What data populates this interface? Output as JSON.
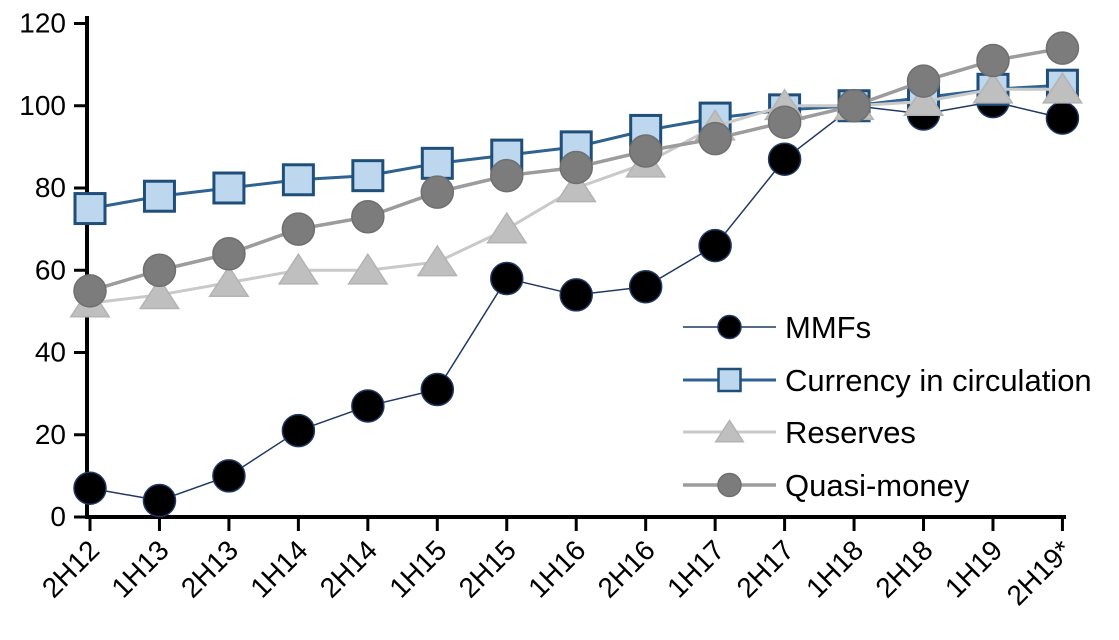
{
  "chart_data": {
    "type": "line",
    "title": "",
    "xlabel": "",
    "ylabel": "",
    "categories": [
      "2H12",
      "1H13",
      "2H13",
      "1H14",
      "2H14",
      "1H15",
      "2H15",
      "1H16",
      "2H16",
      "1H17",
      "2H17",
      "1H18",
      "2H18",
      "1H19",
      "2H19*"
    ],
    "series": [
      {
        "name": "MMFs",
        "marker": "circle",
        "values": [
          7,
          4,
          10,
          21,
          27,
          31,
          58,
          54,
          56,
          66,
          87,
          100,
          98,
          101,
          97
        ],
        "line_color": "#1F3864",
        "line_width": 1.5,
        "marker_fill": "#000000",
        "marker_stroke": "#1F3864"
      },
      {
        "name": "Currency in circulation",
        "marker": "square",
        "values": [
          75,
          78,
          80,
          82,
          83,
          86,
          88,
          90,
          94,
          97,
          99,
          100,
          102,
          104,
          105
        ],
        "line_color": "#2E6391",
        "line_width": 3,
        "marker_fill": "#BDD7EE",
        "marker_stroke": "#1F4E79"
      },
      {
        "name": "Reserves",
        "marker": "triangle",
        "values": [
          52,
          54,
          57,
          60,
          60,
          62,
          70,
          80,
          86,
          95,
          100,
          100,
          101,
          104,
          104
        ],
        "line_color": "#C9C9C9",
        "line_width": 3,
        "marker_fill": "#BFBFBF",
        "marker_stroke": "#B3B3B3"
      },
      {
        "name": "Quasi-money",
        "marker": "circle",
        "values": [
          55,
          60,
          64,
          70,
          73,
          79,
          83,
          85,
          89,
          92,
          96,
          100,
          106,
          111,
          114
        ],
        "line_color": "#9C9C9C",
        "line_width": 3.5,
        "marker_fill": "#7C7C7C",
        "marker_stroke": "#6F6F6F"
      }
    ],
    "y_axis": {
      "min": 0,
      "max": 120,
      "step": 20,
      "tick_labels": [
        "0",
        "20",
        "40",
        "60",
        "80",
        "100",
        "120"
      ]
    },
    "x_axis": {
      "label_rotation_deg": -45
    },
    "legend": {
      "position": "inside-right",
      "entries": [
        "MMFs",
        "Currency in circulation",
        "Reserves",
        "Quasi-money"
      ]
    },
    "grid": false,
    "axis_color": "#000000",
    "index_note_visible": false
  }
}
